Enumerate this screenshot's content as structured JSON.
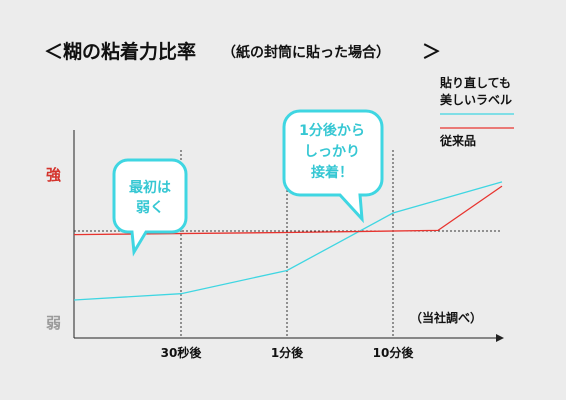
{
  "chart_data": {
    "type": "line",
    "title": "＜糊の粘着力比率",
    "subtitle": "（紙の封筒に貼った場合）",
    "title_end": "＞",
    "y_high_label": "強",
    "y_low_label": "弱",
    "x_ticks": [
      "30秒後",
      "1分後",
      "10分後"
    ],
    "x": [
      0,
      30,
      60,
      600
    ],
    "series": [
      {
        "name": "貼り直しても美しいラベル",
        "legend_lines": [
          "貼り直しても",
          "美しいラベル"
        ],
        "color": "#3fd6e2",
        "values": [
          0.18,
          0.25,
          0.32,
          0.74
        ]
      },
      {
        "name": "従来品",
        "legend_lines": [
          "従来品"
        ],
        "color": "#e8342f",
        "values": [
          0.49,
          0.5,
          0.51,
          0.72
        ]
      }
    ],
    "note": "（当社調べ）",
    "annotations": [
      {
        "lines": [
          "最初は",
          "弱く"
        ]
      },
      {
        "lines": [
          "1分後から",
          "しっかり",
          "接着！"
        ]
      }
    ],
    "grid": false,
    "legend_position": "top-right"
  },
  "colors": {
    "strong": "#d4332c",
    "weak": "#9a9a9a",
    "callout_border": "#3fd6e2",
    "callout_text": "#36c7d3",
    "axis": "#222222"
  }
}
